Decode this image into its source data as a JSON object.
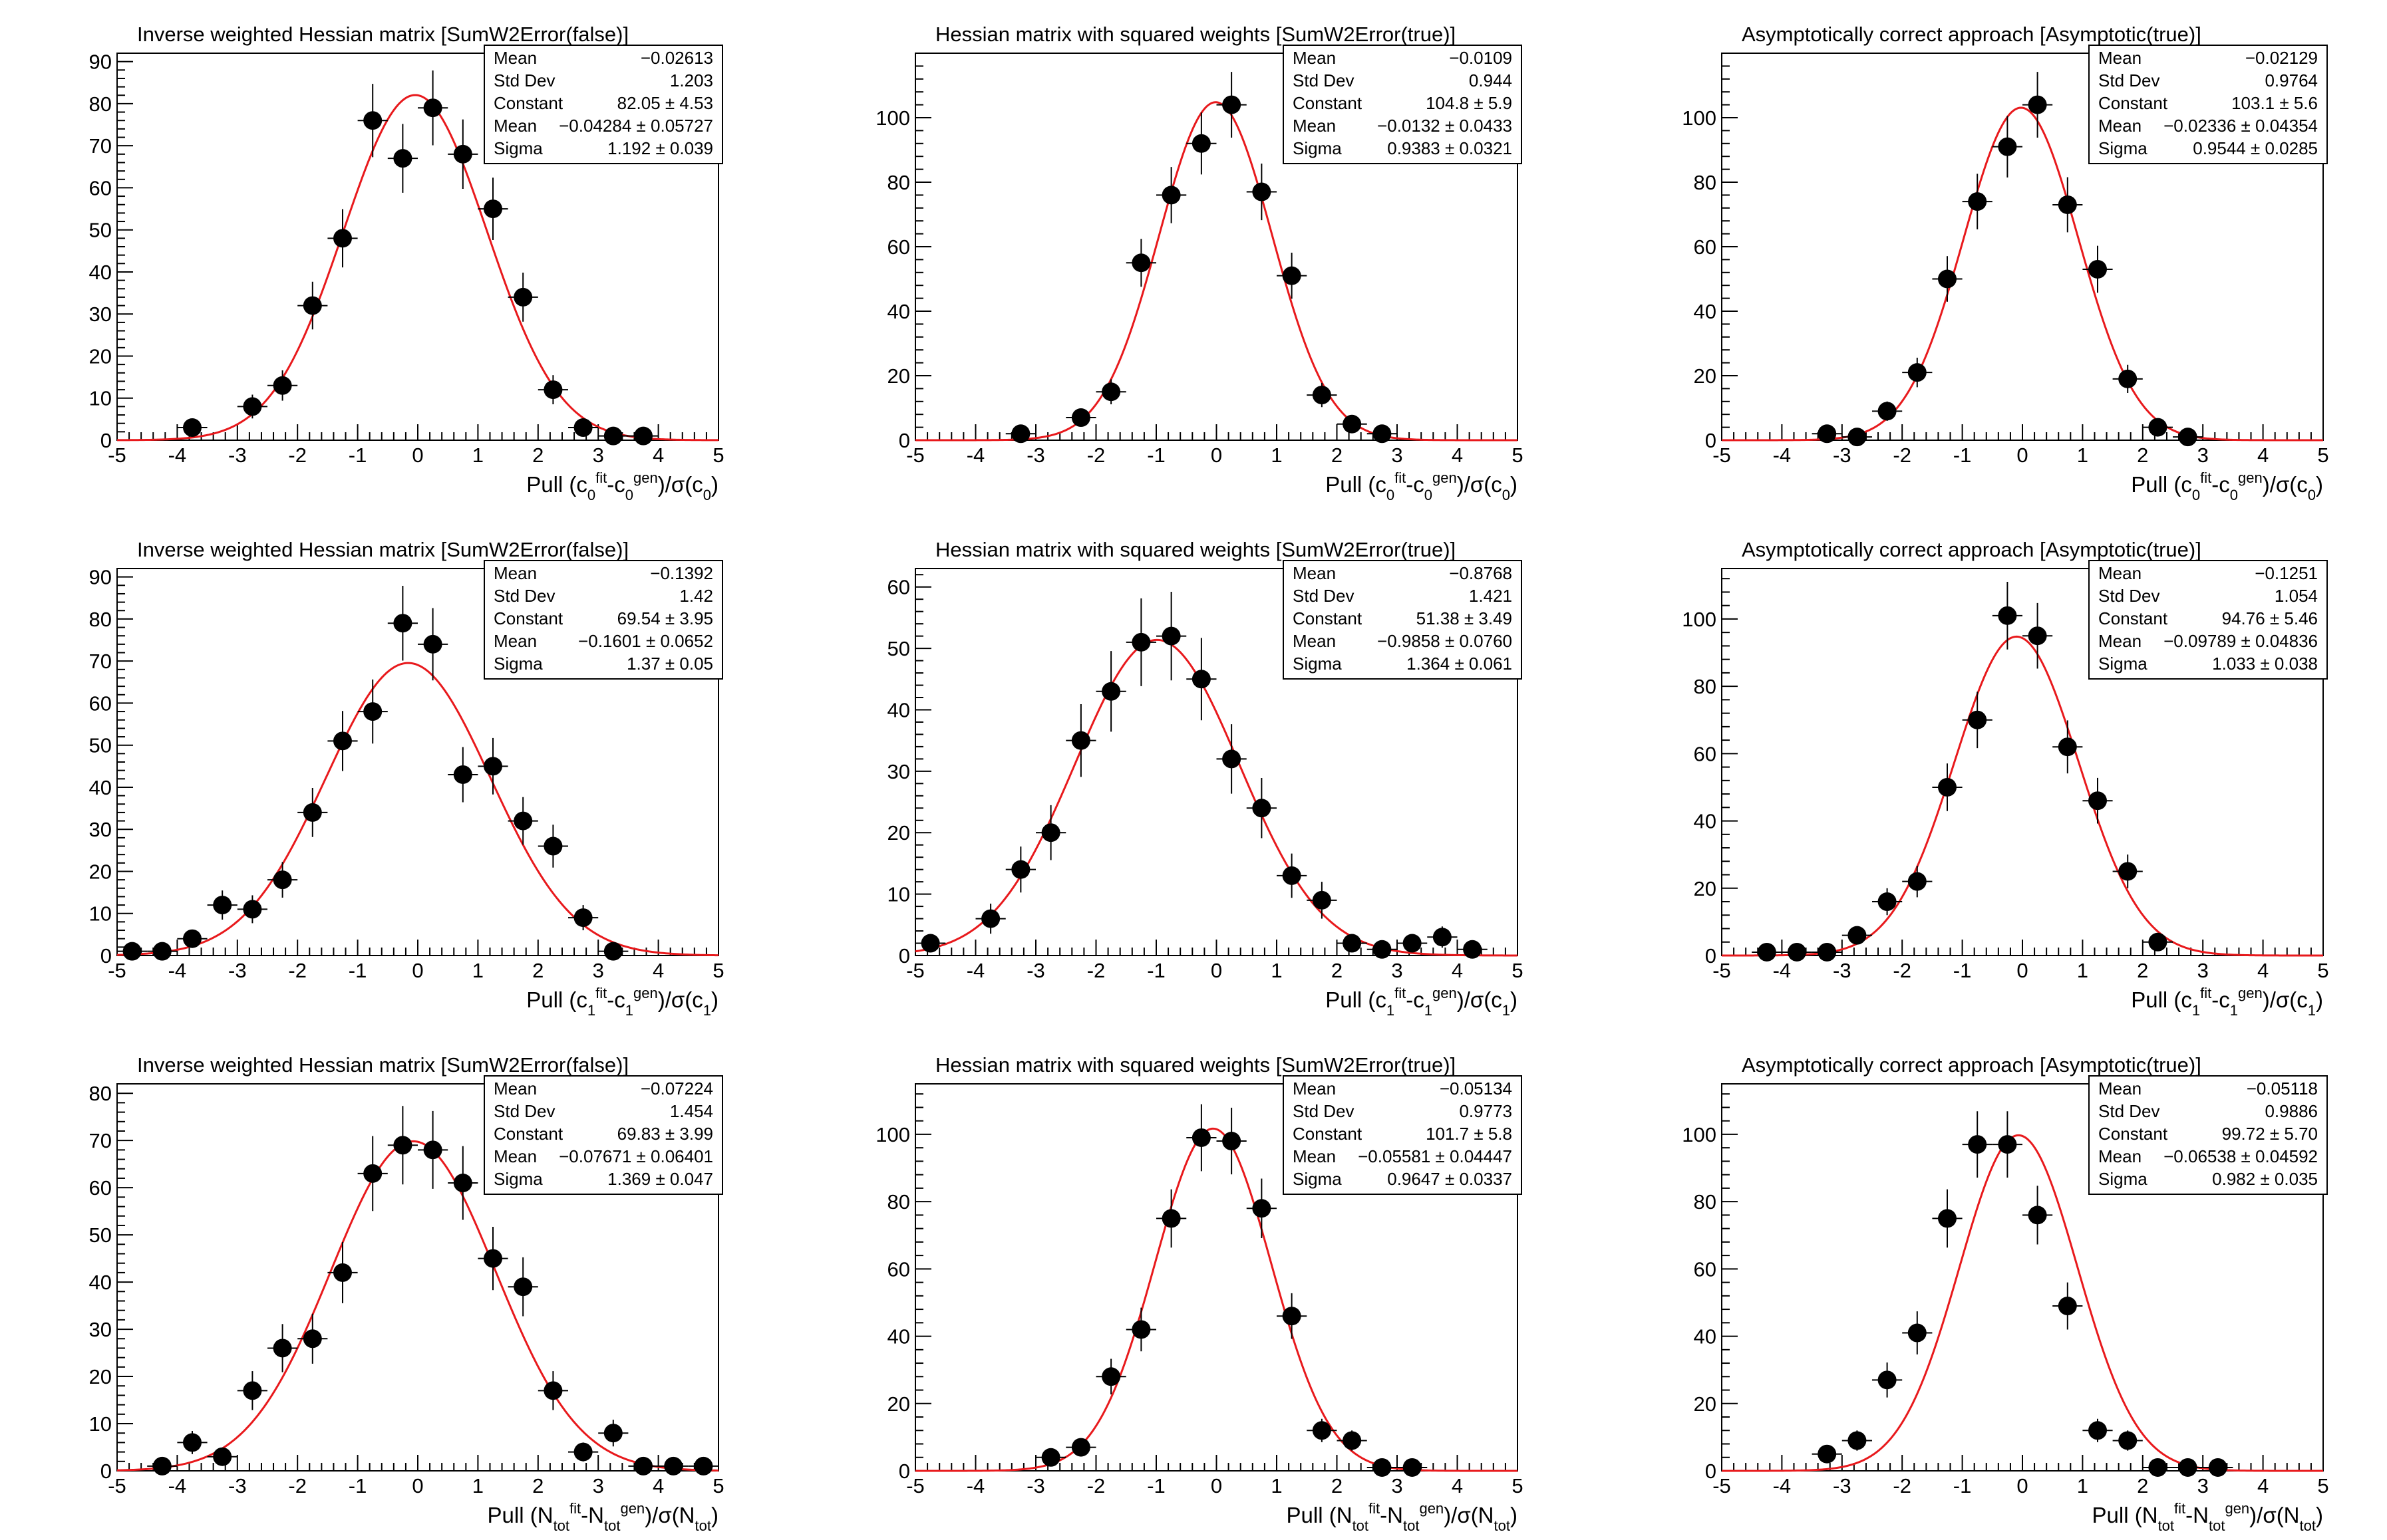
{
  "chart_data": [
    {
      "type": "scatter",
      "title": "Inverse weighted Hessian matrix [SumW2Error(false)]",
      "xlim": [
        -5,
        5
      ],
      "ylim": [
        0,
        92
      ],
      "yticks": [
        0,
        10,
        20,
        30,
        40,
        50,
        60,
        70,
        80,
        90
      ],
      "xticks": [
        -5,
        -4,
        -3,
        -2,
        -1,
        0,
        1,
        2,
        3,
        4,
        5
      ],
      "xlabel": {
        "pre": "Pull (c",
        "s1": "0",
        "p1": "fit",
        "m": "-c",
        "s2": "0",
        "p2": "gen",
        "post": ")/σ(c",
        "s3": "0",
        "end": ")"
      },
      "x": [
        -3.75,
        -2.75,
        -2.25,
        -1.75,
        -1.25,
        -0.75,
        -0.25,
        0.25,
        0.75,
        1.25,
        1.75,
        2.25,
        2.75,
        3.25,
        3.75
      ],
      "y": [
        3,
        8,
        13,
        32,
        48,
        76,
        67,
        79,
        68,
        55,
        34,
        12,
        3,
        1,
        1
      ],
      "fit": {
        "constant": 82.05,
        "mean": -0.04284,
        "sigma": 1.192
      },
      "stats": [
        {
          "label": "Mean",
          "value": "−0.02613"
        },
        {
          "label": "Std Dev",
          "value": "1.203"
        },
        {
          "label": "Constant",
          "value": "82.05 ± 4.53"
        },
        {
          "label": "Mean",
          "value": "−0.04284 ± 0.05727"
        },
        {
          "label": "Sigma",
          "value": "1.192 ± 0.039"
        }
      ]
    },
    {
      "type": "scatter",
      "title": "Hessian matrix with squared weights [SumW2Error(true)]",
      "xlim": [
        -5,
        5
      ],
      "ylim": [
        0,
        120
      ],
      "yticks": [
        0,
        20,
        40,
        60,
        80,
        100
      ],
      "xticks": [
        -5,
        -4,
        -3,
        -2,
        -1,
        0,
        1,
        2,
        3,
        4,
        5
      ],
      "xlabel": {
        "pre": "Pull (c",
        "s1": "0",
        "p1": "fit",
        "m": "-c",
        "s2": "0",
        "p2": "gen",
        "post": ")/σ(c",
        "s3": "0",
        "end": ")"
      },
      "x": [
        -3.25,
        -2.25,
        -1.75,
        -1.25,
        -0.75,
        -0.25,
        0.25,
        0.75,
        1.25,
        1.75,
        2.25,
        2.75
      ],
      "y": [
        2,
        7,
        15,
        55,
        76,
        92,
        104,
        77,
        51,
        14,
        5,
        2
      ],
      "fit": {
        "constant": 104.8,
        "mean": -0.0132,
        "sigma": 0.9383
      },
      "stats": [
        {
          "label": "Mean",
          "value": "−0.0109"
        },
        {
          "label": "Std Dev",
          "value": "0.944"
        },
        {
          "label": "Constant",
          "value": "104.8 ± 5.9"
        },
        {
          "label": "Mean",
          "value": "−0.0132 ± 0.0433"
        },
        {
          "label": "Sigma",
          "value": "0.9383 ± 0.0321"
        }
      ]
    },
    {
      "type": "scatter",
      "title": "Asymptotically correct approach [Asymptotic(true)]",
      "xlim": [
        -5,
        5
      ],
      "ylim": [
        0,
        120
      ],
      "yticks": [
        0,
        20,
        40,
        60,
        80,
        100
      ],
      "xticks": [
        -5,
        -4,
        -3,
        -2,
        -1,
        0,
        1,
        2,
        3,
        4,
        5
      ],
      "xlabel": {
        "pre": "Pull (c",
        "s1": "0",
        "p1": "fit",
        "m": "-c",
        "s2": "0",
        "p2": "gen",
        "post": ")/σ(c",
        "s3": "0",
        "end": ")"
      },
      "x": [
        -3.25,
        -2.75,
        -2.25,
        -1.75,
        -1.25,
        -0.75,
        -0.25,
        0.25,
        0.75,
        1.25,
        1.75,
        2.25,
        2.75
      ],
      "y": [
        2,
        1,
        9,
        21,
        50,
        74,
        91,
        104,
        73,
        53,
        19,
        4,
        1
      ],
      "fit": {
        "constant": 103.1,
        "mean": -0.02336,
        "sigma": 0.9544
      },
      "stats": [
        {
          "label": "Mean",
          "value": "−0.02129"
        },
        {
          "label": "Std Dev",
          "value": "0.9764"
        },
        {
          "label": "Constant",
          "value": "103.1 ± 5.6"
        },
        {
          "label": "Mean",
          "value": "−0.02336 ± 0.04354"
        },
        {
          "label": "Sigma",
          "value": "0.9544 ± 0.0285"
        }
      ]
    },
    {
      "type": "scatter",
      "title": "Inverse weighted Hessian matrix [SumW2Error(false)]",
      "xlim": [
        -5,
        5
      ],
      "ylim": [
        0,
        92
      ],
      "yticks": [
        0,
        10,
        20,
        30,
        40,
        50,
        60,
        70,
        80,
        90
      ],
      "xticks": [
        -5,
        -4,
        -3,
        -2,
        -1,
        0,
        1,
        2,
        3,
        4,
        5
      ],
      "xlabel": {
        "pre": "Pull (c",
        "s1": "1",
        "p1": "fit",
        "m": "-c",
        "s2": "1",
        "p2": "gen",
        "post": ")/σ(c",
        "s3": "1",
        "end": ")"
      },
      "x": [
        -4.75,
        -4.25,
        -3.75,
        -3.25,
        -2.75,
        -2.25,
        -1.75,
        -1.25,
        -0.75,
        -0.25,
        0.25,
        0.75,
        1.25,
        1.75,
        2.25,
        2.75,
        3.25
      ],
      "y": [
        1,
        1,
        4,
        12,
        11,
        18,
        34,
        51,
        58,
        79,
        74,
        43,
        45,
        32,
        26,
        9,
        1
      ],
      "fit": {
        "constant": 69.54,
        "mean": -0.1601,
        "sigma": 1.37
      },
      "stats": [
        {
          "label": "Mean",
          "value": "−0.1392"
        },
        {
          "label": "Std Dev",
          "value": "1.42"
        },
        {
          "label": "Constant",
          "value": "69.54 ± 3.95"
        },
        {
          "label": "Mean",
          "value": "−0.1601 ± 0.0652"
        },
        {
          "label": "Sigma",
          "value": "1.37 ± 0.05"
        }
      ]
    },
    {
      "type": "scatter",
      "title": "Hessian matrix with squared weights [SumW2Error(true)]",
      "xlim": [
        -5,
        5
      ],
      "ylim": [
        0,
        63
      ],
      "yticks": [
        0,
        10,
        20,
        30,
        40,
        50,
        60
      ],
      "xticks": [
        -5,
        -4,
        -3,
        -2,
        -1,
        0,
        1,
        2,
        3,
        4,
        5
      ],
      "xlabel": {
        "pre": "Pull (c",
        "s1": "1",
        "p1": "fit",
        "m": "-c",
        "s2": "1",
        "p2": "gen",
        "post": ")/σ(c",
        "s3": "1",
        "end": ")"
      },
      "x": [
        -4.75,
        -3.75,
        -3.25,
        -2.75,
        -2.25,
        -1.75,
        -1.25,
        -0.75,
        -0.25,
        0.25,
        0.75,
        1.25,
        1.75,
        2.25,
        2.75,
        3.25,
        3.75,
        4.25
      ],
      "y": [
        2,
        6,
        14,
        20,
        35,
        43,
        51,
        52,
        45,
        32,
        24,
        13,
        9,
        2,
        1,
        2,
        3,
        1
      ],
      "fit": {
        "constant": 51.38,
        "mean": -0.9858,
        "sigma": 1.364
      },
      "stats": [
        {
          "label": "Mean",
          "value": "−0.8768"
        },
        {
          "label": "Std Dev",
          "value": "1.421"
        },
        {
          "label": "Constant",
          "value": "51.38 ± 3.49"
        },
        {
          "label": "Mean",
          "value": "−0.9858 ± 0.0760"
        },
        {
          "label": "Sigma",
          "value": "1.364 ± 0.061"
        }
      ]
    },
    {
      "type": "scatter",
      "title": "Asymptotically correct approach [Asymptotic(true)]",
      "xlim": [
        -5,
        5
      ],
      "ylim": [
        0,
        115
      ],
      "yticks": [
        0,
        20,
        40,
        60,
        80,
        100
      ],
      "xticks": [
        -5,
        -4,
        -3,
        -2,
        -1,
        0,
        1,
        2,
        3,
        4,
        5
      ],
      "xlabel": {
        "pre": "Pull (c",
        "s1": "1",
        "p1": "fit",
        "m": "-c",
        "s2": "1",
        "p2": "gen",
        "post": ")/σ(c",
        "s3": "1",
        "end": ")"
      },
      "x": [
        -4.25,
        -3.75,
        -3.25,
        -2.75,
        -2.25,
        -1.75,
        -1.25,
        -0.75,
        -0.25,
        0.25,
        0.75,
        1.25,
        1.75,
        2.25
      ],
      "y": [
        1,
        1,
        1,
        6,
        16,
        22,
        50,
        70,
        101,
        95,
        62,
        46,
        25,
        4
      ],
      "fit": {
        "constant": 94.76,
        "mean": -0.09789,
        "sigma": 1.033
      },
      "stats": [
        {
          "label": "Mean",
          "value": "−0.1251"
        },
        {
          "label": "Std Dev",
          "value": "1.054"
        },
        {
          "label": "Constant",
          "value": "94.76 ± 5.46"
        },
        {
          "label": "Mean",
          "value": "−0.09789 ± 0.04836"
        },
        {
          "label": "Sigma",
          "value": "1.033 ± 0.038"
        }
      ]
    },
    {
      "type": "scatter",
      "title": "Inverse weighted Hessian matrix [SumW2Error(false)]",
      "xlim": [
        -5,
        5
      ],
      "ylim": [
        0,
        82
      ],
      "yticks": [
        0,
        10,
        20,
        30,
        40,
        50,
        60,
        70,
        80
      ],
      "xticks": [
        -5,
        -4,
        -3,
        -2,
        -1,
        0,
        1,
        2,
        3,
        4,
        5
      ],
      "xlabel": {
        "pre": "Pull (N",
        "s1": "tot",
        "p1": "fit",
        "m": "-N",
        "s2": "tot",
        "p2": "gen",
        "post": ")/σ(N",
        "s3": "tot",
        "end": ")"
      },
      "x": [
        -4.25,
        -3.75,
        -3.25,
        -2.75,
        -2.25,
        -1.75,
        -1.25,
        -0.75,
        -0.25,
        0.25,
        0.75,
        1.25,
        1.75,
        2.25,
        2.75,
        3.25,
        3.75,
        4.25,
        4.75
      ],
      "y": [
        1,
        6,
        3,
        17,
        26,
        28,
        42,
        63,
        69,
        68,
        61,
        45,
        39,
        17,
        4,
        8,
        1,
        1,
        1
      ],
      "fit": {
        "constant": 69.83,
        "mean": -0.07671,
        "sigma": 1.369
      },
      "stats": [
        {
          "label": "Mean",
          "value": "−0.07224"
        },
        {
          "label": "Std Dev",
          "value": "1.454"
        },
        {
          "label": "Constant",
          "value": "69.83 ± 3.99"
        },
        {
          "label": "Mean",
          "value": "−0.07671 ± 0.06401"
        },
        {
          "label": "Sigma",
          "value": "1.369 ± 0.047"
        }
      ]
    },
    {
      "type": "scatter",
      "title": "Hessian matrix with squared weights [SumW2Error(true)]",
      "xlim": [
        -5,
        5
      ],
      "ylim": [
        0,
        115
      ],
      "yticks": [
        0,
        20,
        40,
        60,
        80,
        100
      ],
      "xticks": [
        -5,
        -4,
        -3,
        -2,
        -1,
        0,
        1,
        2,
        3,
        4,
        5
      ],
      "xlabel": {
        "pre": "Pull (N",
        "s1": "tot",
        "p1": "fit",
        "m": "-N",
        "s2": "tot",
        "p2": "gen",
        "post": ")/σ(N",
        "s3": "tot",
        "end": ")"
      },
      "x": [
        -2.75,
        -2.25,
        -1.75,
        -1.25,
        -0.75,
        -0.25,
        0.25,
        0.75,
        1.25,
        1.75,
        2.25,
        2.75,
        3.25
      ],
      "y": [
        4,
        7,
        28,
        42,
        75,
        99,
        98,
        78,
        46,
        12,
        9,
        1,
        1
      ],
      "fit": {
        "constant": 101.7,
        "mean": -0.05581,
        "sigma": 0.9647
      },
      "stats": [
        {
          "label": "Mean",
          "value": "−0.05134"
        },
        {
          "label": "Std Dev",
          "value": "0.9773"
        },
        {
          "label": "Constant",
          "value": "101.7 ± 5.8"
        },
        {
          "label": "Mean",
          "value": "−0.05581 ± 0.04447"
        },
        {
          "label": "Sigma",
          "value": "0.9647 ± 0.0337"
        }
      ]
    },
    {
      "type": "scatter",
      "title": "Asymptotically correct approach [Asymptotic(true)]",
      "xlim": [
        -5,
        5
      ],
      "ylim": [
        0,
        115
      ],
      "yticks": [
        0,
        20,
        40,
        60,
        80,
        100
      ],
      "xticks": [
        -5,
        -4,
        -3,
        -2,
        -1,
        0,
        1,
        2,
        3,
        4,
        5
      ],
      "xlabel": {
        "pre": "Pull (N",
        "s1": "tot",
        "p1": "fit",
        "m": "-N",
        "s2": "tot",
        "p2": "gen",
        "post": ")/σ(N",
        "s3": "tot",
        "end": ")"
      },
      "x": [
        -3.25,
        -2.75,
        -2.25,
        -1.75,
        -1.25,
        -0.75,
        -0.25,
        0.25,
        0.75,
        1.25,
        1.75,
        2.25,
        2.75,
        3.25
      ],
      "y": [
        5,
        9,
        27,
        41,
        75,
        97,
        97,
        76,
        49,
        12,
        9,
        1,
        1,
        1
      ],
      "fit": {
        "constant": 99.72,
        "mean": -0.06538,
        "sigma": 0.982
      },
      "stats": [
        {
          "label": "Mean",
          "value": "−0.05118"
        },
        {
          "label": "Std Dev",
          "value": "0.9886"
        },
        {
          "label": "Constant",
          "value": "99.72 ± 5.70"
        },
        {
          "label": "Mean",
          "value": "−0.06538 ± 0.04592"
        },
        {
          "label": "Sigma",
          "value": "0.982 ± 0.035"
        }
      ]
    }
  ]
}
